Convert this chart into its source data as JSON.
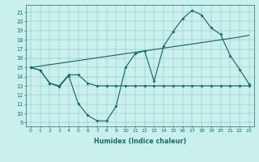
{
  "xlabel": "Humidex (Indice chaleur)",
  "background_color": "#caf0ee",
  "line_color": "#1a6b6b",
  "xlim": [
    -0.5,
    23.5
  ],
  "ylim": [
    8.6,
    21.8
  ],
  "yticks": [
    9,
    10,
    11,
    12,
    13,
    14,
    15,
    16,
    17,
    18,
    19,
    20,
    21
  ],
  "xticks": [
    0,
    1,
    2,
    3,
    4,
    5,
    6,
    7,
    8,
    9,
    10,
    11,
    12,
    13,
    14,
    15,
    16,
    17,
    18,
    19,
    20,
    21,
    22,
    23
  ],
  "line1_y": [
    15.0,
    14.7,
    13.3,
    12.9,
    14.1,
    11.1,
    9.8,
    9.2,
    9.2,
    10.8,
    15.0,
    16.5,
    16.8,
    13.5,
    17.3,
    18.9,
    20.3,
    21.2,
    20.7,
    19.3,
    18.6,
    16.3,
    14.8,
    13.2
  ],
  "line2_y": [
    15.0,
    14.7,
    13.3,
    13.0,
    14.2,
    14.2,
    13.3,
    13.0,
    13.0,
    13.0,
    13.0,
    13.0,
    13.0,
    13.0,
    13.0,
    13.0,
    13.0,
    13.0,
    13.0,
    13.0,
    13.0,
    13.0,
    13.0,
    13.0
  ],
  "line3_y": [
    15.0,
    15.15,
    15.3,
    15.45,
    15.6,
    15.75,
    15.9,
    16.05,
    16.2,
    16.35,
    16.5,
    16.65,
    16.8,
    16.95,
    17.1,
    17.25,
    17.4,
    17.55,
    17.7,
    17.85,
    18.0,
    18.15,
    18.3,
    18.5
  ]
}
